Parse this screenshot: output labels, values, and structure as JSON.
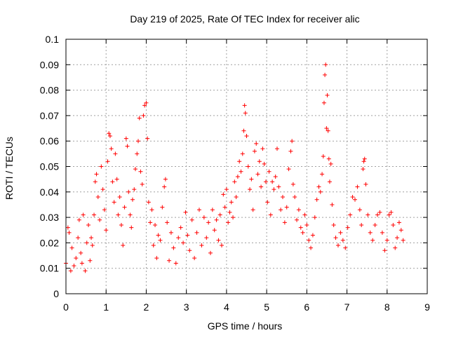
{
  "chart_data": {
    "type": "scatter",
    "title": "Day 219 of 2025, Rate Of TEC Index for receiver alic",
    "xlabel": "GPS time / hours",
    "ylabel": "ROTI / TECUs",
    "xlim": [
      0,
      9
    ],
    "ylim": [
      0,
      0.1
    ],
    "x_ticks": [
      "0",
      "1",
      "2",
      "3",
      "4",
      "5",
      "6",
      "7",
      "8",
      "9"
    ],
    "y_ticks": [
      "0",
      "0.01",
      "0.02",
      "0.03",
      "0.04",
      "0.05",
      "0.06",
      "0.07",
      "0.08",
      "0.09",
      "0.1"
    ],
    "grid": true,
    "marker": "+",
    "color": "#ff0000",
    "series": [
      {
        "points": [
          [
            0.0,
            0.012
          ],
          [
            0.05,
            0.026
          ],
          [
            0.08,
            0.024
          ],
          [
            0.12,
            0.009
          ],
          [
            0.15,
            0.018
          ],
          [
            0.2,
            0.011
          ],
          [
            0.25,
            0.014
          ],
          [
            0.3,
            0.022
          ],
          [
            0.33,
            0.029
          ],
          [
            0.37,
            0.016
          ],
          [
            0.4,
            0.012
          ],
          [
            0.43,
            0.031
          ],
          [
            0.48,
            0.009
          ],
          [
            0.52,
            0.02
          ],
          [
            0.56,
            0.027
          ],
          [
            0.6,
            0.013
          ],
          [
            0.63,
            0.022
          ],
          [
            0.66,
            0.019
          ],
          [
            0.7,
            0.031
          ],
          [
            0.73,
            0.044
          ],
          [
            0.76,
            0.047
          ],
          [
            0.8,
            0.038
          ],
          [
            0.84,
            0.029
          ],
          [
            0.88,
            0.05
          ],
          [
            0.92,
            0.041
          ],
          [
            0.96,
            0.033
          ],
          [
            1.0,
            0.025
          ],
          [
            1.04,
            0.052
          ],
          [
            1.07,
            0.063
          ],
          [
            1.1,
            0.062
          ],
          [
            1.13,
            0.057
          ],
          [
            1.16,
            0.044
          ],
          [
            1.2,
            0.036
          ],
          [
            1.23,
            0.055
          ],
          [
            1.27,
            0.045
          ],
          [
            1.3,
            0.031
          ],
          [
            1.34,
            0.038
          ],
          [
            1.38,
            0.027
          ],
          [
            1.42,
            0.019
          ],
          [
            1.46,
            0.034
          ],
          [
            1.5,
            0.061
          ],
          [
            1.53,
            0.058
          ],
          [
            1.56,
            0.04
          ],
          [
            1.6,
            0.031
          ],
          [
            1.63,
            0.026
          ],
          [
            1.66,
            0.037
          ],
          [
            1.7,
            0.041
          ],
          [
            1.73,
            0.049
          ],
          [
            1.77,
            0.055
          ],
          [
            1.8,
            0.06
          ],
          [
            1.83,
            0.069
          ],
          [
            1.86,
            0.048
          ],
          [
            1.9,
            0.043
          ],
          [
            1.93,
            0.07
          ],
          [
            1.96,
            0.074
          ],
          [
            2.0,
            0.075
          ],
          [
            2.03,
            0.061
          ],
          [
            2.06,
            0.036
          ],
          [
            2.1,
            0.028
          ],
          [
            2.14,
            0.033
          ],
          [
            2.18,
            0.019
          ],
          [
            2.22,
            0.027
          ],
          [
            2.26,
            0.014
          ],
          [
            2.3,
            0.023
          ],
          [
            2.35,
            0.021
          ],
          [
            2.4,
            0.034
          ],
          [
            2.45,
            0.042
          ],
          [
            2.48,
            0.045
          ],
          [
            2.52,
            0.028
          ],
          [
            2.57,
            0.013
          ],
          [
            2.62,
            0.024
          ],
          [
            2.68,
            0.018
          ],
          [
            2.74,
            0.012
          ],
          [
            2.8,
            0.022
          ],
          [
            2.86,
            0.026
          ],
          [
            2.92,
            0.02
          ],
          [
            2.98,
            0.032
          ],
          [
            3.03,
            0.023
          ],
          [
            3.08,
            0.017
          ],
          [
            3.14,
            0.029
          ],
          [
            3.2,
            0.014
          ],
          [
            3.26,
            0.024
          ],
          [
            3.32,
            0.033
          ],
          [
            3.38,
            0.019
          ],
          [
            3.44,
            0.03
          ],
          [
            3.5,
            0.022
          ],
          [
            3.55,
            0.028
          ],
          [
            3.6,
            0.016
          ],
          [
            3.65,
            0.033
          ],
          [
            3.7,
            0.025
          ],
          [
            3.75,
            0.029
          ],
          [
            3.8,
            0.021
          ],
          [
            3.84,
            0.031
          ],
          [
            3.88,
            0.019
          ],
          [
            3.92,
            0.039
          ],
          [
            3.96,
            0.034
          ],
          [
            4.0,
            0.041
          ],
          [
            4.04,
            0.028
          ],
          [
            4.08,
            0.032
          ],
          [
            4.12,
            0.036
          ],
          [
            4.16,
            0.03
          ],
          [
            4.2,
            0.044
          ],
          [
            4.24,
            0.038
          ],
          [
            4.28,
            0.046
          ],
          [
            4.32,
            0.052
          ],
          [
            4.36,
            0.048
          ],
          [
            4.4,
            0.055
          ],
          [
            4.43,
            0.064
          ],
          [
            4.45,
            0.074
          ],
          [
            4.47,
            0.071
          ],
          [
            4.5,
            0.062
          ],
          [
            4.54,
            0.05
          ],
          [
            4.58,
            0.041
          ],
          [
            4.62,
            0.045
          ],
          [
            4.66,
            0.033
          ],
          [
            4.7,
            0.056
          ],
          [
            4.74,
            0.059
          ],
          [
            4.78,
            0.047
          ],
          [
            4.82,
            0.052
          ],
          [
            4.86,
            0.042
          ],
          [
            4.9,
            0.057
          ],
          [
            4.94,
            0.051
          ],
          [
            4.98,
            0.044
          ],
          [
            5.02,
            0.036
          ],
          [
            5.06,
            0.048
          ],
          [
            5.1,
            0.031
          ],
          [
            5.14,
            0.044
          ],
          [
            5.18,
            0.041
          ],
          [
            5.22,
            0.046
          ],
          [
            5.26,
            0.057
          ],
          [
            5.3,
            0.042
          ],
          [
            5.35,
            0.033
          ],
          [
            5.4,
            0.038
          ],
          [
            5.45,
            0.028
          ],
          [
            5.5,
            0.034
          ],
          [
            5.55,
            0.049
          ],
          [
            5.6,
            0.056
          ],
          [
            5.63,
            0.06
          ],
          [
            5.66,
            0.043
          ],
          [
            5.7,
            0.038
          ],
          [
            5.75,
            0.029
          ],
          [
            5.8,
            0.033
          ],
          [
            5.85,
            0.026
          ],
          [
            5.9,
            0.024
          ],
          [
            5.95,
            0.031
          ],
          [
            6.0,
            0.027
          ],
          [
            6.05,
            0.021
          ],
          [
            6.1,
            0.018
          ],
          [
            6.15,
            0.023
          ],
          [
            6.2,
            0.03
          ],
          [
            6.25,
            0.037
          ],
          [
            6.3,
            0.042
          ],
          [
            6.34,
            0.04
          ],
          [
            6.38,
            0.047
          ],
          [
            6.41,
            0.054
          ],
          [
            6.43,
            0.075
          ],
          [
            6.45,
            0.086
          ],
          [
            6.47,
            0.09
          ],
          [
            6.49,
            0.065
          ],
          [
            6.51,
            0.078
          ],
          [
            6.53,
            0.064
          ],
          [
            6.55,
            0.053
          ],
          [
            6.57,
            0.044
          ],
          [
            6.6,
            0.051
          ],
          [
            6.63,
            0.035
          ],
          [
            6.67,
            0.027
          ],
          [
            6.72,
            0.022
          ],
          [
            6.78,
            0.019
          ],
          [
            6.84,
            0.024
          ],
          [
            6.9,
            0.021
          ],
          [
            6.96,
            0.018
          ],
          [
            7.02,
            0.026
          ],
          [
            7.08,
            0.031
          ],
          [
            7.14,
            0.038
          ],
          [
            7.2,
            0.037
          ],
          [
            7.26,
            0.042
          ],
          [
            7.32,
            0.033
          ],
          [
            7.36,
            0.027
          ],
          [
            7.4,
            0.049
          ],
          [
            7.42,
            0.052
          ],
          [
            7.44,
            0.053
          ],
          [
            7.47,
            0.043
          ],
          [
            7.52,
            0.031
          ],
          [
            7.58,
            0.024
          ],
          [
            7.64,
            0.021
          ],
          [
            7.7,
            0.027
          ],
          [
            7.76,
            0.031
          ],
          [
            7.82,
            0.032
          ],
          [
            7.88,
            0.024
          ],
          [
            7.94,
            0.017
          ],
          [
            8.0,
            0.021
          ],
          [
            8.05,
            0.031
          ],
          [
            8.1,
            0.032
          ],
          [
            8.15,
            0.027
          ],
          [
            8.2,
            0.018
          ],
          [
            8.25,
            0.022
          ],
          [
            8.3,
            0.028
          ],
          [
            8.35,
            0.025
          ],
          [
            8.4,
            0.021
          ]
        ]
      }
    ]
  }
}
